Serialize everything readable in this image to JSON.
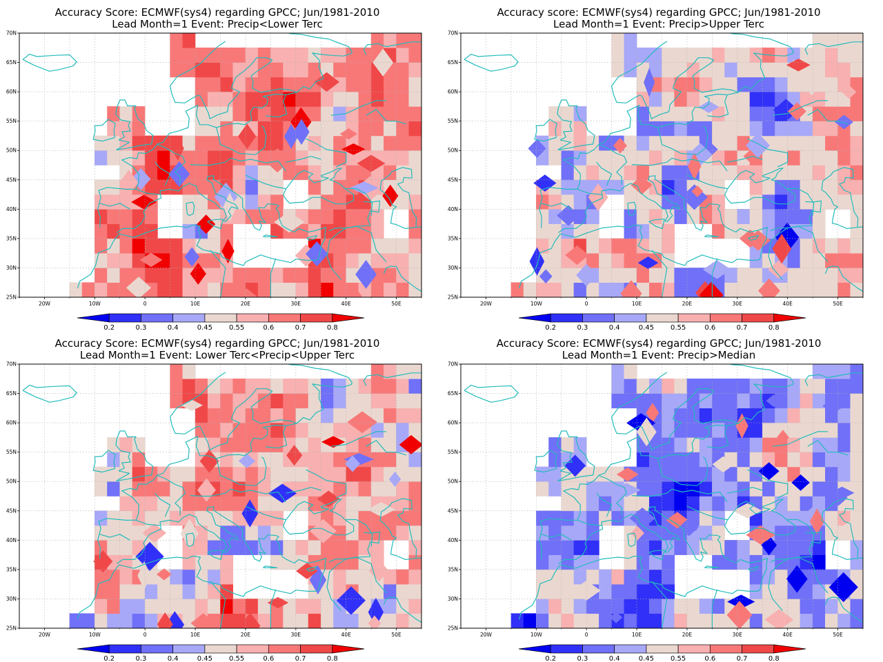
{
  "panels": [
    {
      "title_line1": "Accuracy Score: ECMWF(sys4) regarding GPCC; Jun/1981-2010",
      "title_line2": "Lead Month=1 Event: Precip<Lower Terc",
      "seed": 11,
      "bias": 0.25
    },
    {
      "title_line1": "Accuracy score: ECMWF(sys4) regarding GPCC; Jun/1981-2010",
      "title_line2": "Lead Month=1 Event: Precip>Upper Terc",
      "seed": 29,
      "bias": 0.0
    },
    {
      "title_line1": "Accuracy Score: ECMWF(sys4) regarding GPCC; Jun/1981-2010",
      "title_line2": "Lead Month=1 Event: Lower Terc<Precip<Upper Terc",
      "seed": 47,
      "bias": 0.12
    },
    {
      "title_line1": "Accuracy Score: ECMWF(sys4) regarding GPCC; Jun/1981-2010",
      "title_line2": "Lead Month=1 Event: Precip>Median",
      "seed": 71,
      "bias": -0.18
    }
  ],
  "map": {
    "lon_range": [
      -25,
      55
    ],
    "lat_range": [
      25,
      70
    ],
    "lon_ticks": [
      "20W",
      "10W",
      "0",
      "10E",
      "20E",
      "30E",
      "40E",
      "50E"
    ],
    "lat_ticks": [
      "25N",
      "30N",
      "35N",
      "40N",
      "45N",
      "50N",
      "55N",
      "60N",
      "65N",
      "70N"
    ],
    "coast_color": "#22bbbb",
    "grid": true
  },
  "colorbar": {
    "labels": [
      "0.2",
      "0.3",
      "0.4",
      "0.45",
      "0.55",
      "0.6",
      "0.7",
      "0.8"
    ],
    "colors": [
      "#0000f0",
      "#3030f8",
      "#7070f8",
      "#a8a8f8",
      "#ead8d0",
      "#f8b0b0",
      "#f87878",
      "#f04848",
      "#f00000"
    ]
  }
}
